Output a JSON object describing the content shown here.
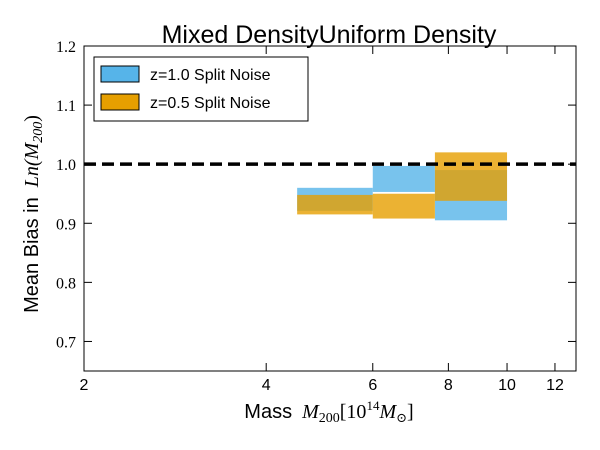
{
  "chart_data": {
    "type": "bar",
    "title": "Mixed DensityUniform Density",
    "xlabel": {
      "text": "Mass",
      "math_symbol": "M",
      "math_sub": "200",
      "bracket_open": "[10",
      "bracket_exp": "14",
      "unit": "M",
      "unit_sub": "⊙",
      "bracket_close": "]"
    },
    "ylabel": {
      "text": "Mean Bias in",
      "math": "Ln(M",
      "math_sub": "200",
      "math_close": ")"
    },
    "x_scale": "log",
    "xlim": [
      2,
      13
    ],
    "ylim": [
      0.65,
      1.2
    ],
    "x_ticks": [
      2,
      4,
      6,
      8,
      10,
      12
    ],
    "x_tick_labels": [
      "2",
      "4",
      "6",
      "8",
      "10",
      "12"
    ],
    "y_ticks": [
      0.7,
      0.8,
      0.9,
      1.0,
      1.1,
      1.2
    ],
    "y_tick_labels": [
      "0.7",
      "0.8",
      "0.9",
      "1.0",
      "1.1",
      "1.2"
    ],
    "reference_line": {
      "y": 1.0,
      "style": "dashed",
      "color": "#000000"
    },
    "legend_position": "top-left",
    "series": [
      {
        "name": "z=1.0 Split Noise",
        "color": "#56B4E9",
        "bins": [
          {
            "x0": 4.5,
            "x1": 6.0,
            "y0": 0.921,
            "y1": 0.96
          },
          {
            "x0": 6.0,
            "x1": 7.6,
            "y0": 0.953,
            "y1": 0.997
          },
          {
            "x0": 7.6,
            "x1": 10.0,
            "y0": 0.905,
            "y1": 0.99
          }
        ]
      },
      {
        "name": "z=0.5 Split Noise",
        "color": "#E69F00",
        "bins": [
          {
            "x0": 4.5,
            "x1": 6.0,
            "y0": 0.915,
            "y1": 0.948
          },
          {
            "x0": 6.0,
            "x1": 7.6,
            "y0": 0.908,
            "y1": 0.95
          },
          {
            "x0": 7.6,
            "x1": 10.0,
            "y0": 0.938,
            "y1": 1.02
          }
        ]
      }
    ]
  }
}
